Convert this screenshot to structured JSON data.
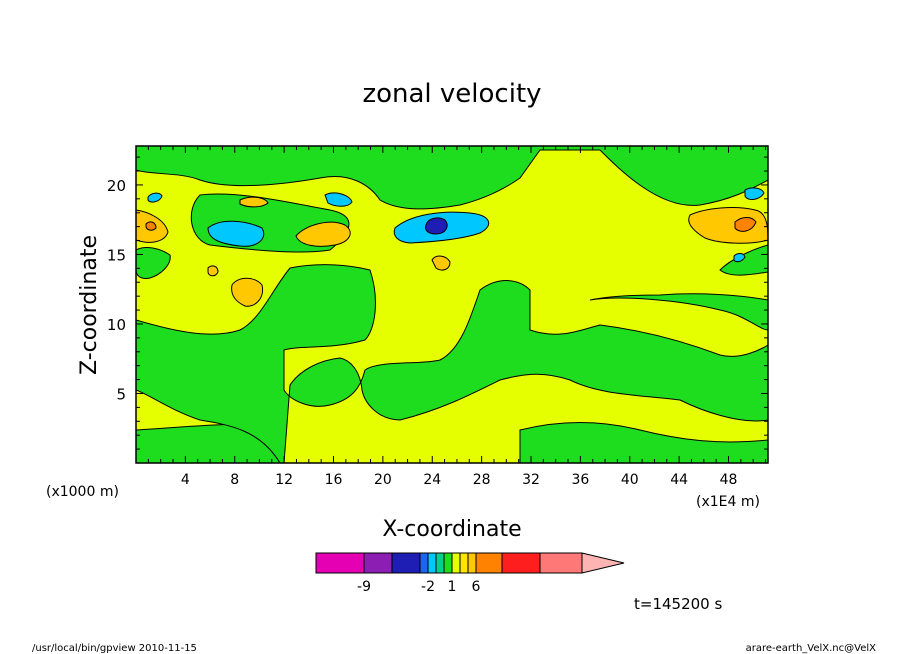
{
  "chart_data": {
    "type": "heatmap",
    "title": "zonal velocity",
    "xlabel": "X-coordinate",
    "ylabel": "Z-coordinate",
    "x_unit_label": "(x1E4 m)",
    "y_unit_label": "(x1000 m)",
    "xlim": [
      0,
      51.2
    ],
    "ylim": [
      0,
      22.8
    ],
    "x_ticks": [
      4,
      8,
      12,
      16,
      20,
      24,
      28,
      32,
      36,
      40,
      44,
      48
    ],
    "y_ticks": [
      5,
      10,
      15,
      20
    ],
    "colorbar": {
      "bounds": [
        -12,
        -9,
        -6,
        -3,
        -2,
        -1,
        0,
        1,
        2,
        3,
        6,
        9,
        12
      ],
      "colors": [
        "#e600b4",
        "#8c1eb4",
        "#1e1eb4",
        "#1e64f0",
        "#00c8ff",
        "#00d28c",
        "#1edc1e",
        "#e6ff00",
        "#ffe600",
        "#ffc800",
        "#ff8200",
        "#ff1e1e",
        "#ff7878"
      ],
      "extend_color": "#ffb4b4",
      "labels": [
        "-9",
        "-2",
        "1",
        "6"
      ]
    },
    "background_level": "0 to 1 (yellow) and -1 to 0 (green)",
    "regions": [
      {
        "name": "lower-green-band",
        "range": "-1..0",
        "x": [
          0,
          12
        ],
        "z": [
          0,
          3
        ]
      },
      {
        "name": "central-green-block",
        "range": "-1..0",
        "x": [
          12,
          19
        ],
        "z": [
          3,
          16
        ]
      },
      {
        "name": "mid-green-band",
        "range": "-1..0",
        "x": [
          18,
          51
        ],
        "z": [
          4,
          10
        ]
      },
      {
        "name": "upper-green-band",
        "range": "-1..0",
        "x": [
          5,
          30
        ],
        "z": [
          15.5,
          19
        ]
      },
      {
        "name": "top-right-green",
        "range": "-1..0",
        "x": [
          35,
          51
        ],
        "z": [
          17,
          23
        ]
      },
      {
        "name": "jet-minimum",
        "range": "-9..-6",
        "x": [
          24,
          25
        ],
        "z": [
          16.5,
          17.5
        ]
      },
      {
        "name": "orange-max-left",
        "range": "2..3",
        "x": [
          0,
          3
        ],
        "z": [
          16,
          18
        ]
      },
      {
        "name": "orange-max-right",
        "range": "2..3",
        "x": [
          45,
          51
        ],
        "z": [
          16,
          18
        ]
      }
    ]
  },
  "annotations": {
    "time": "t=145200 s",
    "footer_left": "/usr/local/bin/gpview  2010-11-15",
    "footer_right": "arare-earth_VelX.nc@VelX"
  }
}
